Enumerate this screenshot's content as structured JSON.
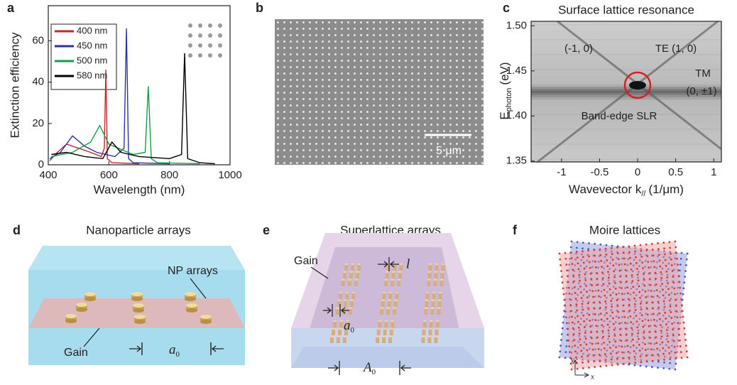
{
  "panel_labels": [
    "a",
    "b",
    "c",
    "d",
    "e",
    "f"
  ],
  "chart_data": [
    {
      "type": "line",
      "xlabel": "Wavelength (nm)",
      "ylabel": "Extinction efficiency",
      "xlim": [
        400,
        1000
      ],
      "ylim": [
        0,
        77
      ],
      "xticks": [
        400,
        600,
        800,
        1000
      ],
      "yticks": [
        0,
        20,
        40,
        60
      ],
      "legend": "upper left",
      "series": [
        {
          "name": "400 nm",
          "color": "#c62828",
          "x": [
            405,
            430,
            460,
            500,
            540,
            575,
            585,
            590,
            595,
            610,
            700
          ],
          "values": [
            2,
            6,
            10,
            8,
            6,
            4,
            8,
            46,
            3,
            1,
            0.5
          ]
        },
        {
          "name": "450 nm",
          "color": "#2b35a0",
          "x": [
            405,
            440,
            480,
            520,
            560,
            620,
            650,
            658,
            665,
            680,
            800
          ],
          "values": [
            3,
            6,
            14,
            9,
            6,
            4,
            8,
            66,
            3,
            1,
            0.5
          ]
        },
        {
          "name": "500 nm",
          "color": "#13a04a",
          "x": [
            410,
            480,
            540,
            570,
            600,
            680,
            720,
            730,
            740,
            760,
            900
          ],
          "values": [
            4,
            6,
            11,
            19,
            10,
            5,
            6,
            38,
            3,
            1,
            0.5
          ]
        },
        {
          "name": "580 nm",
          "color": "#000000",
          "x": [
            410,
            460,
            520,
            580,
            610,
            640,
            700,
            800,
            840,
            850,
            860,
            900,
            950
          ],
          "values": [
            5,
            6,
            4,
            3,
            11,
            6,
            4,
            3,
            5,
            54,
            3,
            1,
            0.5
          ]
        }
      ]
    },
    {
      "type": "image",
      "title": "Surface lattice resonance",
      "xlabel": "Wavevector k",
      "xlabel_sub": "//",
      "xlabel_unit": "(1/μm)",
      "ylabel": "E",
      "ylabel_sub": "photon",
      "ylabel_unit": "(eV)",
      "xlim": [
        -1.4,
        1.1
      ],
      "ylim": [
        1.349,
        1.505
      ],
      "xticks": [
        -1,
        -0.5,
        0,
        0.5,
        1
      ],
      "yticks": [
        1.35,
        {
          "value": 1.4,
          "label": "1.40"
        },
        1.45,
        {
          "value": 1.5,
          "label": "1.50"
        }
      ],
      "annotations": [
        "(-1, 0)",
        "TE (1, 0)",
        "TM",
        "(0, ±1)",
        "Band-edge SLR"
      ]
    }
  ],
  "sem_image": {
    "scale_bar": "5 μm"
  },
  "nanoparticle_arrays": {
    "title": "Nanoparticle arrays",
    "np_label": "NP arrays",
    "gain_label": "Gain",
    "period": "a",
    "period_sub": "0"
  },
  "superlattice_arrays": {
    "title": "Superlattice arrays",
    "gain_label": "Gain",
    "gap": "l",
    "period": "a",
    "period_sub": "0",
    "super_period": "A",
    "super_period_sub": "0"
  },
  "moire_lattices": {
    "title": "Moire lattices",
    "axis_y": "y",
    "axis_x": "x"
  }
}
